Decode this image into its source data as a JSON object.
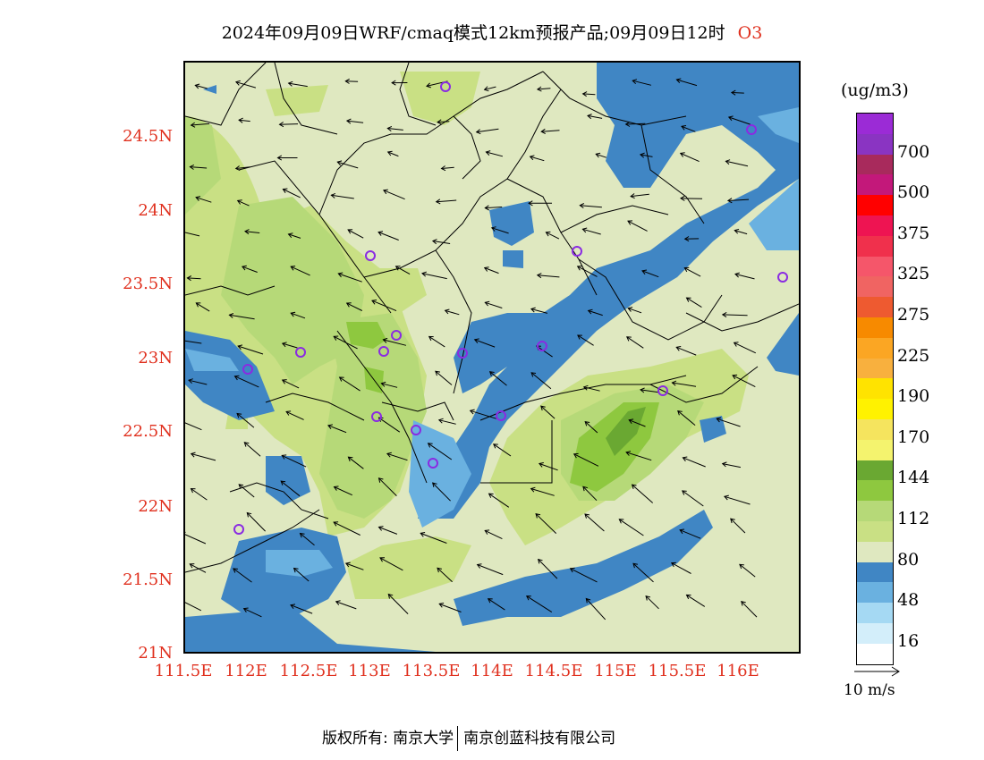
{
  "title": "2024年09月09日WRF/cmaq模式12km预报产品;09月09日12时",
  "species": "O3",
  "unit": "(ug/m3)",
  "wind_reference": "10 m/s",
  "footer": {
    "left": "版权所有: 南京大学",
    "right": "南京创蓝科技有限公司"
  },
  "lat_ticks": [
    "24.5N",
    "24N",
    "23.5N",
    "23N",
    "22.5N",
    "22N",
    "21.5N",
    "21N"
  ],
  "lon_ticks": [
    "111.5E",
    "112E",
    "112.5E",
    "113E",
    "113.5E",
    "114E",
    "114.5E",
    "115E",
    "115.5E",
    "116E"
  ],
  "legend": [
    {
      "color": "#9b2bd6"
    },
    {
      "color": "#8a34c2",
      "label": "700"
    },
    {
      "color": "#a82a5c"
    },
    {
      "color": "#c3187a",
      "label": "500"
    },
    {
      "color": "#ff0000"
    },
    {
      "color": "#ee1452",
      "label": "375"
    },
    {
      "color": "#f0304c"
    },
    {
      "color": "#f5566a",
      "label": "325"
    },
    {
      "color": "#f06462"
    },
    {
      "color": "#ee5a30",
      "label": "275"
    },
    {
      "color": "#f78a00"
    },
    {
      "color": "#fba623",
      "label": "225"
    },
    {
      "color": "#f8b03e"
    },
    {
      "color": "#ffe300",
      "label": "190"
    },
    {
      "color": "#fff200"
    },
    {
      "color": "#f5e45e",
      "label": "170"
    },
    {
      "color": "#f4f36e"
    },
    {
      "color": "#6aa832",
      "label": "144"
    },
    {
      "color": "#8ec83f"
    },
    {
      "color": "#b6d978",
      "label": "112"
    },
    {
      "color": "#c9e084"
    },
    {
      "color": "#dfe8c0",
      "label": "80"
    },
    {
      "color": "#4086c4"
    },
    {
      "color": "#6ab1e0",
      "label": "48"
    },
    {
      "color": "#a5d9f3"
    },
    {
      "color": "#d3eefa",
      "label": "16"
    },
    {
      "color": "#ffffff"
    }
  ],
  "colors": {
    "bg": "#dfe8c0",
    "green1": "#c9e084",
    "green2": "#b6d978",
    "green3": "#8ec83f",
    "green4": "#6aa832",
    "blue1": "#4086c4",
    "blue2": "#6ab1e0",
    "blue3": "#a5d9f3",
    "accent": "#e0301e",
    "marker": "#8a2be2"
  }
}
